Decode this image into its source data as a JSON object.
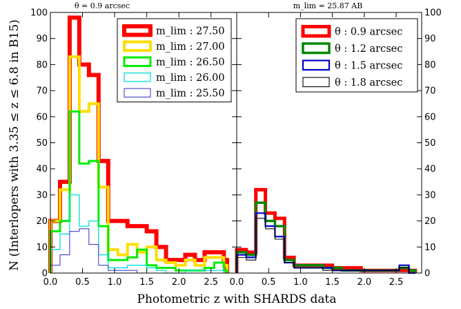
{
  "chart_data": [
    {
      "type": "step-histogram",
      "title": "θ = 0.9 arcsec",
      "xlabel": "Photometric z with SHARDS data",
      "ylabel": "N (Interlopers with 3.35 ≤ z ≤ 6.8 in B15)",
      "xlim": [
        0.0,
        2.9
      ],
      "ylim": [
        0,
        100
      ],
      "xticks": [
        "0.0",
        "0.5",
        "1.0",
        "1.5",
        "2.0",
        "2.5"
      ],
      "yticks": [
        "0",
        "10",
        "20",
        "30",
        "40",
        "50",
        "60",
        "70",
        "80",
        "90",
        "100"
      ],
      "legend_placement": "top-right",
      "bin_edges": [
        0.0,
        0.15,
        0.3,
        0.45,
        0.6,
        0.75,
        0.9,
        1.05,
        1.2,
        1.35,
        1.5,
        1.65,
        1.8,
        1.95,
        2.1,
        2.25,
        2.4,
        2.55,
        2.7,
        2.75
      ],
      "series": [
        {
          "name": "m_lim : 27.50",
          "color": "#ff0000",
          "width": 6,
          "values": [
            20,
            35,
            98,
            80,
            76,
            43,
            20,
            20,
            18,
            18,
            16,
            10,
            5,
            5,
            7,
            5,
            8,
            8,
            5
          ]
        },
        {
          "name": "m_lim : 27.00",
          "color": "#ffdd00",
          "width": 4,
          "values": [
            20,
            32,
            83,
            62,
            65,
            33,
            9,
            7,
            11,
            8,
            10,
            5,
            4,
            3,
            5,
            3,
            6,
            6,
            3
          ]
        },
        {
          "name": "m_lim : 26.50",
          "color": "#00ee00",
          "width": 3,
          "values": [
            16,
            20,
            62,
            42,
            43,
            18,
            5,
            5,
            6,
            9,
            3,
            2,
            2,
            1,
            1,
            1,
            2,
            4,
            1
          ]
        },
        {
          "name": "m_lim : 26.00",
          "color": "#00dddd",
          "width": 1.3,
          "values": [
            9,
            15,
            30,
            18,
            20,
            7,
            2,
            2,
            3,
            3,
            2,
            1,
            0,
            0,
            1,
            1,
            1,
            1,
            0
          ]
        },
        {
          "name": "m_lim : 25.50",
          "color": "#4040cc",
          "width": 1.1,
          "values": [
            3,
            7,
            16,
            17,
            11,
            3,
            1,
            1,
            1,
            0,
            0,
            0,
            0,
            0,
            0,
            0,
            0,
            0,
            0
          ]
        }
      ]
    },
    {
      "type": "step-histogram",
      "title": "m_lim = 25.87 AB",
      "xlim": [
        0.0,
        2.9
      ],
      "ylim": [
        0,
        100
      ],
      "xticks": [
        "0.0",
        "0.5",
        "1.0",
        "1.5",
        "2.0",
        "2.5"
      ],
      "yticks": [
        "0",
        "10",
        "20",
        "30",
        "40",
        "50",
        "60",
        "70",
        "80",
        "90",
        "100"
      ],
      "legend_placement": "top-right",
      "bin_edges": [
        0.0,
        0.15,
        0.3,
        0.45,
        0.6,
        0.75,
        0.9,
        1.05,
        1.2,
        1.35,
        1.5,
        1.65,
        1.8,
        1.95,
        2.1,
        2.25,
        2.4,
        2.55,
        2.7,
        2.8
      ],
      "series": [
        {
          "name": "θ : 0.9 arcsec",
          "color": "#ff0000",
          "width": 5,
          "values": [
            9,
            8,
            32,
            23,
            21,
            6,
            3,
            3,
            3,
            3,
            2,
            2,
            2,
            1,
            1,
            1,
            1,
            1,
            1
          ]
        },
        {
          "name": "θ : 1.2 arcsec",
          "color": "#008800",
          "width": 3.5,
          "values": [
            8,
            7,
            27,
            20,
            18,
            5,
            3,
            3,
            3,
            2,
            2,
            1,
            1,
            1,
            1,
            1,
            1,
            2,
            1
          ]
        },
        {
          "name": "θ : 1.5 arcsec",
          "color": "#0000cc",
          "width": 2.2,
          "values": [
            7,
            6,
            23,
            18,
            14,
            4,
            2,
            2,
            2,
            2,
            1,
            1,
            1,
            1,
            1,
            1,
            1,
            3,
            0
          ]
        },
        {
          "name": "θ : 1.8 arcsec",
          "color": "#000000",
          "width": 1.1,
          "values": [
            6,
            5,
            21,
            17,
            13,
            4,
            2,
            2,
            2,
            1,
            1,
            1,
            1,
            1,
            1,
            1,
            1,
            2,
            0
          ]
        }
      ]
    }
  ]
}
